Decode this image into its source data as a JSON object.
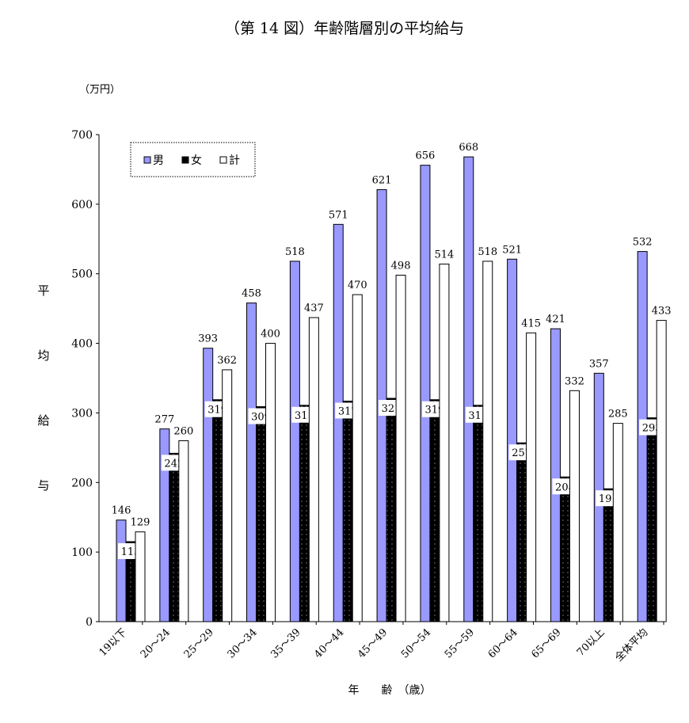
{
  "chart_data": {
    "type": "bar",
    "title": "（第 14 図）年齢階層別の平均給与",
    "unit_label": "（万円）",
    "ylabel": "平均給与",
    "xlabel": "年　　齢　（歳）",
    "ylim": [
      0,
      700
    ],
    "yticks": [
      0,
      100,
      200,
      300,
      400,
      500,
      600,
      700
    ],
    "grid": false,
    "legend_position": "top-left",
    "categories": [
      "19以下",
      "20～24",
      "25～29",
      "30～34",
      "35～39",
      "40～44",
      "45～49",
      "50～54",
      "55～59",
      "60～64",
      "65～69",
      "70以上",
      "全体平均"
    ],
    "series": [
      {
        "name": "男",
        "color": "#9999ff",
        "values": [
          146,
          277,
          393,
          458,
          518,
          571,
          621,
          656,
          668,
          521,
          421,
          357,
          532
        ]
      },
      {
        "name": "女",
        "color": "#000000",
        "values": [
          115,
          242,
          319,
          309,
          311,
          317,
          321,
          319,
          311,
          257,
          208,
          191,
          293
        ]
      },
      {
        "name": "計",
        "color": "#ffffff",
        "values": [
          129,
          260,
          362,
          400,
          437,
          470,
          498,
          514,
          518,
          415,
          332,
          285,
          433
        ]
      }
    ]
  }
}
